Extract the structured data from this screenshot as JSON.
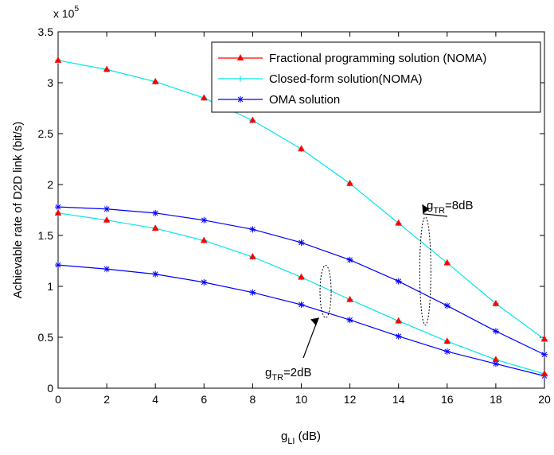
{
  "chart_data": {
    "type": "line",
    "title": "",
    "xlabel": {
      "base": "g",
      "sub": "LI",
      "suffix": " (dB)"
    },
    "ylabel": "Achievable rate of D2D link (bit/s)",
    "y_multiplier": {
      "base": "x 10",
      "exp": "5"
    },
    "xlim": [
      0,
      20
    ],
    "ylim": [
      0,
      3.5
    ],
    "x_ticks": [
      0,
      2,
      4,
      6,
      8,
      10,
      12,
      14,
      16,
      18,
      20
    ],
    "y_ticks": [
      0,
      0.5,
      1,
      1.5,
      2,
      2.5,
      3,
      3.5
    ],
    "y_tick_labels": [
      "0",
      "0.5",
      "1",
      "1.5",
      "2",
      "2.5",
      "3",
      "3.5"
    ],
    "grid": false,
    "legend_position": "top-right",
    "x": [
      0,
      2,
      4,
      6,
      8,
      10,
      12,
      14,
      16,
      18,
      20
    ],
    "series": [
      {
        "name": "Fractional programming solution (NOMA)",
        "group": "gTR=8dB",
        "marker": "triangle",
        "color": "#ff0000",
        "values": [
          3.22,
          3.13,
          3.01,
          2.85,
          2.63,
          2.35,
          2.01,
          1.62,
          1.23,
          0.83,
          0.48
        ]
      },
      {
        "name": "Closed-form solution(NOMA)",
        "group": "gTR=8dB",
        "marker": "plus",
        "color": "#00e5e5",
        "values": [
          3.22,
          3.13,
          3.01,
          2.85,
          2.63,
          2.35,
          2.01,
          1.62,
          1.23,
          0.83,
          0.48
        ]
      },
      {
        "name": "OMA solution",
        "group": "gTR=8dB",
        "marker": "asterisk",
        "color": "#0000ff",
        "values": [
          1.78,
          1.76,
          1.72,
          1.65,
          1.56,
          1.43,
          1.26,
          1.05,
          0.81,
          0.56,
          0.33
        ]
      },
      {
        "name": "Fractional programming solution (NOMA)",
        "group": "gTR=2dB",
        "marker": "triangle",
        "color": "#ff0000",
        "values": [
          1.72,
          1.65,
          1.57,
          1.45,
          1.29,
          1.09,
          0.87,
          0.66,
          0.46,
          0.28,
          0.14
        ]
      },
      {
        "name": "Closed-form solution(NOMA)",
        "group": "gTR=2dB",
        "marker": "plus",
        "color": "#00e5e5",
        "values": [
          1.72,
          1.65,
          1.57,
          1.45,
          1.29,
          1.09,
          0.87,
          0.66,
          0.46,
          0.28,
          0.14
        ]
      },
      {
        "name": "OMA solution",
        "group": "gTR=2dB",
        "marker": "asterisk",
        "color": "#0000ff",
        "values": [
          1.21,
          1.17,
          1.12,
          1.04,
          0.94,
          0.82,
          0.67,
          0.51,
          0.36,
          0.24,
          0.12
        ]
      }
    ],
    "legend": [
      {
        "label": "Fractional programming solution (NOMA)",
        "marker": "triangle",
        "color": "#ff0000"
      },
      {
        "label": "Closed-form solution(NOMA)",
        "marker": "plus",
        "color": "#00e5e5"
      },
      {
        "label": "OMA solution",
        "marker": "asterisk",
        "color": "#0000ff"
      }
    ],
    "annotations": [
      {
        "id": "gtr8",
        "base": "g",
        "sub": "TR",
        "suffix": "=8dB",
        "x": 15.1,
        "y_center": 1.15
      },
      {
        "id": "gtr2",
        "base": "g",
        "sub": "TR",
        "suffix": "=2dB",
        "x": 11.0,
        "y_center": 0.95
      }
    ]
  }
}
